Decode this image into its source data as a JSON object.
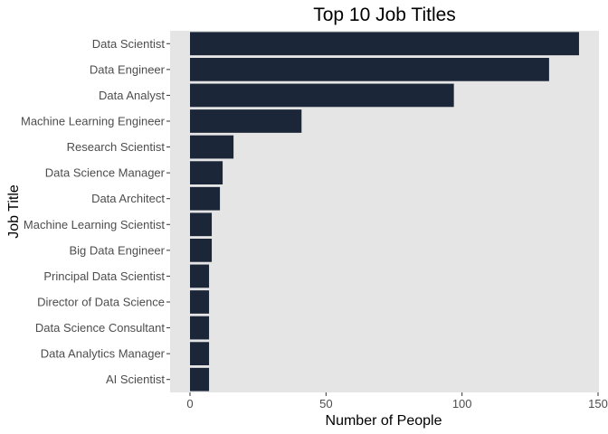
{
  "chart_data": {
    "type": "bar",
    "orientation": "horizontal",
    "title": "Top 10 Job Titles",
    "xlabel": "Number of People",
    "ylabel": "Job Title",
    "categories": [
      "Data Scientist",
      "Data Engineer",
      "Data Analyst",
      "Machine Learning Engineer",
      "Research Scientist",
      "Data Science Manager",
      "Data Architect",
      "Machine Learning Scientist",
      "Big Data Engineer",
      "Principal Data Scientist",
      "Director of Data Science",
      "Data Science Consultant",
      "Data Analytics Manager",
      "AI Scientist"
    ],
    "values": [
      143,
      132,
      97,
      41,
      16,
      12,
      11,
      8,
      8,
      7,
      7,
      7,
      7,
      7
    ],
    "xlim": [
      0,
      150
    ],
    "xticks": [
      0,
      50,
      100,
      150
    ],
    "xtick_labels": [
      "0",
      "50",
      "100",
      "150"
    ],
    "grid": false,
    "colors": {
      "bar": "#1b2638",
      "panel": "#e5e5e5",
      "background": "#ffffff"
    }
  }
}
